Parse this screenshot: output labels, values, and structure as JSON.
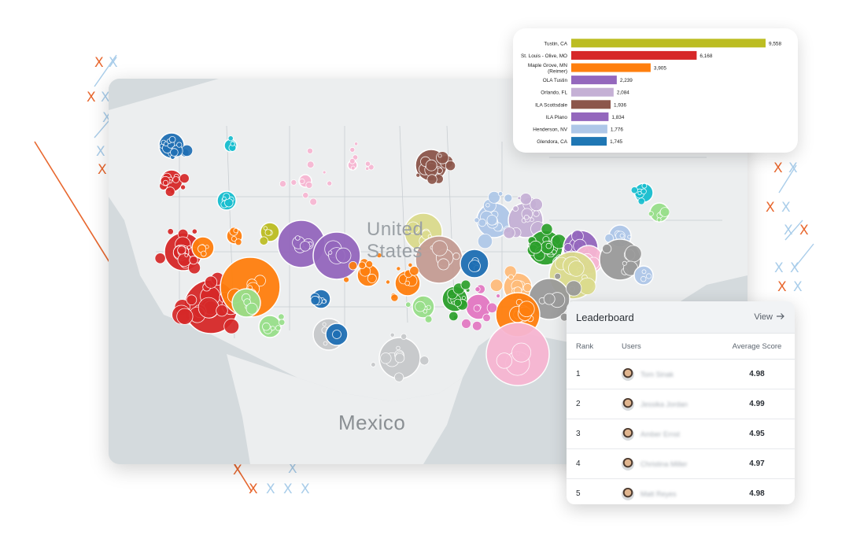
{
  "map": {
    "labels": {
      "country_us": "United States",
      "country_mx": "Mexico"
    },
    "colors": {
      "land": "#eceeef",
      "water": "#d4dadd",
      "border": "#c9ced2",
      "blue": "#1f6fb4",
      "red": "#d62828",
      "orange": "#ff7f0e",
      "green": "#2ca02c",
      "lightgreen": "#98df8a",
      "purple": "#9467bd",
      "lightpurple": "#c5b0d5",
      "brown": "#8c564b",
      "pink": "#f7b6d2",
      "cyan": "#17becf",
      "olive": "#bcbd22",
      "lightblue": "#aec7e8",
      "gray": "#9a9a9a",
      "khaki": "#dbdb8d",
      "peach": "#ffbb78",
      "magenta": "#e377c2",
      "salmon": "#c49c94"
    }
  },
  "chart_data": {
    "type": "bar",
    "orientation": "horizontal",
    "categories": [
      "Tustin, CA",
      "St. Louis - Olive, MO",
      "Maple Grove, MN (Reimer)",
      "OLA Tustin",
      "Orlando, FL",
      "ILA Scottsdale",
      "ILA Plano",
      "Henderson, NV",
      "Glendora, CA"
    ],
    "category_lines": [
      [
        "Tustin, CA"
      ],
      [
        "St. Louis - Olive, MO"
      ],
      [
        "Maple Grove, MN",
        "(Reimer)"
      ],
      [
        "OLA Tustin"
      ],
      [
        "Orlando, FL"
      ],
      [
        "ILA Scottsdale"
      ],
      [
        "ILA Plano"
      ],
      [
        "Henderson, NV"
      ],
      [
        "Glendora, CA"
      ]
    ],
    "values": [
      9558,
      6168,
      3905,
      2239,
      2084,
      1936,
      1834,
      1776,
      1745
    ],
    "value_labels": [
      "9,558",
      "6,168",
      "3,905",
      "2,239",
      "2,084",
      "1,936",
      "1,834",
      "1,776",
      "1,745"
    ],
    "colors": [
      "#bcbd22",
      "#d62728",
      "#ff7f0e",
      "#9467bd",
      "#c5b0d5",
      "#8c564b",
      "#9467bd",
      "#aec7e8",
      "#1f77b4"
    ],
    "xlim": [
      0,
      9558
    ],
    "grid": false
  },
  "leaderboard": {
    "title": "Leaderboard",
    "view_label": "View",
    "view_icon": "arrow-right-icon",
    "columns": {
      "rank": "Rank",
      "users": "Users",
      "score": "Average Score"
    },
    "rows": [
      {
        "rank": "1",
        "name": "Tom Sinak",
        "score": "4.98"
      },
      {
        "rank": "2",
        "name": "Jessika Jordan",
        "score": "4.99"
      },
      {
        "rank": "3",
        "name": "Amber Ernst",
        "score": "4.95"
      },
      {
        "rank": "4",
        "name": "Christina Miller",
        "score": "4.97"
      },
      {
        "rank": "5",
        "name": "Matt Reyes",
        "score": "4.98"
      }
    ]
  },
  "decor": {
    "orange": "#e8672e",
    "blue": "#a9cdea",
    "mark": "X"
  }
}
